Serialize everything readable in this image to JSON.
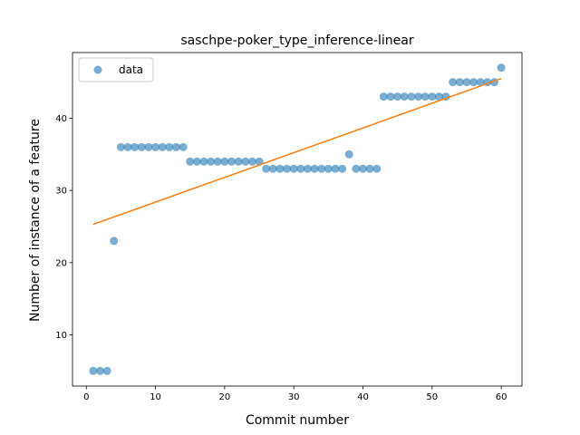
{
  "chart_data": {
    "type": "scatter",
    "title": "saschpe-poker_type_inference-linear",
    "xlabel": "Commit number",
    "ylabel": "Number of instance of a feature",
    "xlim": [
      -2.0,
      63.0
    ],
    "ylim": [
      2.9,
      49.1
    ],
    "xticks": [
      0,
      10,
      20,
      30,
      40,
      50,
      60
    ],
    "yticks": [
      10,
      20,
      30,
      40
    ],
    "grid": false,
    "legend": {
      "position": "top-left",
      "entries": [
        "data"
      ]
    },
    "series": [
      {
        "name": "data",
        "kind": "points",
        "color": "#1f77b4",
        "x": [
          1,
          2,
          3,
          4,
          5,
          6,
          7,
          8,
          9,
          10,
          11,
          12,
          13,
          14,
          15,
          16,
          17,
          18,
          19,
          20,
          21,
          22,
          23,
          24,
          25,
          26,
          27,
          28,
          29,
          30,
          31,
          32,
          33,
          34,
          35,
          36,
          37,
          38,
          39,
          40,
          41,
          42,
          43,
          44,
          45,
          46,
          47,
          48,
          49,
          50,
          51,
          52,
          53,
          54,
          55,
          56,
          57,
          58,
          59,
          60
        ],
        "y": [
          5,
          5,
          5,
          23,
          36,
          36,
          36,
          36,
          36,
          36,
          36,
          36,
          36,
          36,
          34,
          34,
          34,
          34,
          34,
          34,
          34,
          34,
          34,
          34,
          34,
          33,
          33,
          33,
          33,
          33,
          33,
          33,
          33,
          33,
          33,
          33,
          33,
          35,
          33,
          33,
          33,
          33,
          43,
          43,
          43,
          43,
          43,
          43,
          43,
          43,
          43,
          43,
          45,
          45,
          45,
          45,
          45,
          45,
          45,
          47
        ]
      },
      {
        "name": "",
        "kind": "line",
        "color": "#ff7f0e",
        "x": [
          1,
          60
        ],
        "y": [
          25.3,
          45.5
        ]
      }
    ]
  }
}
